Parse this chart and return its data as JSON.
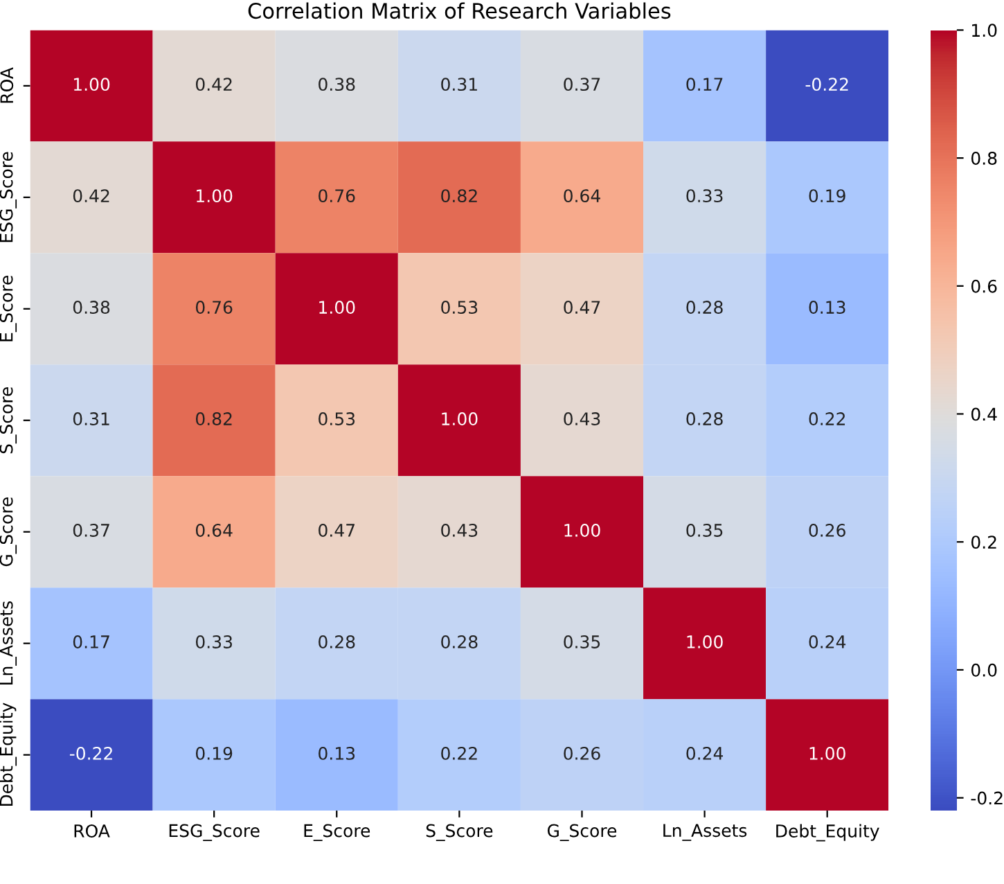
{
  "chart_data": {
    "type": "heatmap",
    "title": "Correlation Matrix of Research Variables",
    "categories": [
      "ROA",
      "ESG_Score",
      "E_Score",
      "S_Score",
      "G_Score",
      "Ln_Assets",
      "Debt_Equity"
    ],
    "y_categories": [
      "ROA",
      "ESG_Score",
      "E_Score",
      "S_Score",
      "G_Score",
      "Ln_Assets",
      "Debt_Equity"
    ],
    "cells": [
      [
        1.0,
        0.42,
        0.38,
        0.31,
        0.37,
        0.17,
        -0.22
      ],
      [
        0.42,
        1.0,
        0.76,
        0.82,
        0.64,
        0.33,
        0.19
      ],
      [
        0.38,
        0.76,
        1.0,
        0.53,
        0.47,
        0.28,
        0.13
      ],
      [
        0.31,
        0.82,
        0.53,
        1.0,
        0.43,
        0.28,
        0.22
      ],
      [
        0.37,
        0.64,
        0.47,
        0.43,
        1.0,
        0.35,
        0.26
      ],
      [
        0.17,
        0.33,
        0.28,
        0.28,
        0.35,
        1.0,
        0.24
      ],
      [
        -0.22,
        0.19,
        0.13,
        0.22,
        0.26,
        0.24,
        1.0
      ]
    ],
    "clim": [
      -0.22,
      1.0
    ],
    "cticks": [
      {
        "value": -0.2,
        "label": "-0.2"
      },
      {
        "value": 0.0,
        "label": "0.0"
      },
      {
        "value": 0.2,
        "label": "0.2"
      },
      {
        "value": 0.4,
        "label": "0.4"
      },
      {
        "value": 0.6,
        "label": "0.6"
      },
      {
        "value": 0.8,
        "label": "0.8"
      },
      {
        "value": 1.0,
        "label": "1.0"
      }
    ],
    "cell_labels": [
      [
        "1.00",
        "0.42",
        "0.38",
        "0.31",
        "0.37",
        "0.17",
        "-0.22"
      ],
      [
        "0.42",
        "1.00",
        "0.76",
        "0.82",
        "0.64",
        "0.33",
        "0.19"
      ],
      [
        "0.38",
        "0.76",
        "1.00",
        "0.53",
        "0.47",
        "0.28",
        "0.13"
      ],
      [
        "0.31",
        "0.82",
        "0.53",
        "1.00",
        "0.43",
        "0.28",
        "0.22"
      ],
      [
        "0.37",
        "0.64",
        "0.47",
        "0.43",
        "1.00",
        "0.35",
        "0.26"
      ],
      [
        "0.17",
        "0.33",
        "0.28",
        "0.28",
        "0.35",
        "1.00",
        "0.24"
      ],
      [
        "-0.22",
        "0.19",
        "0.13",
        "0.22",
        "0.26",
        "0.24",
        "1.00"
      ]
    ]
  }
}
